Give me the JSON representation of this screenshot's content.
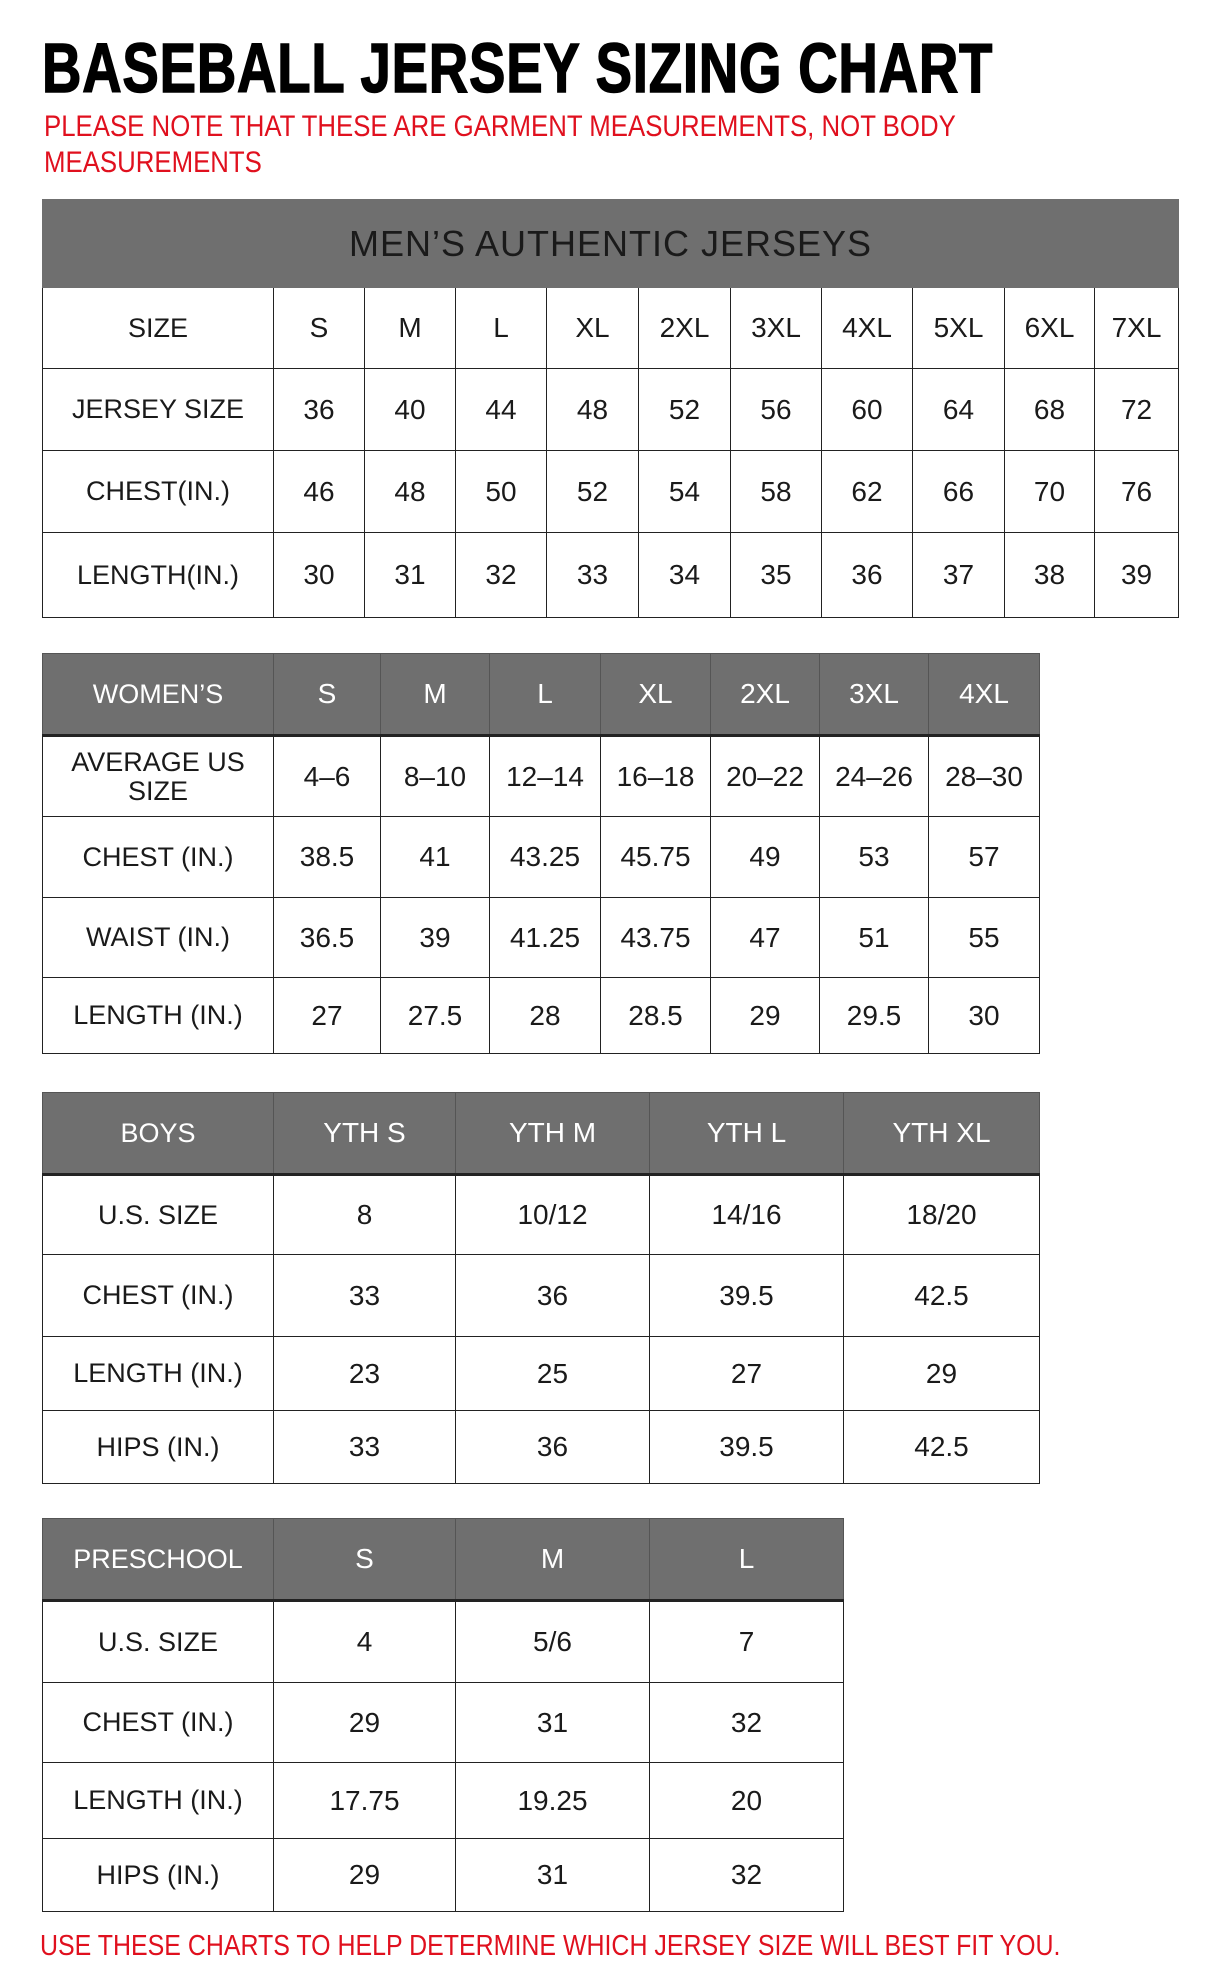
{
  "title": "BASEBALL JERSEY SIZING CHART",
  "note_line1": "PLEASE NOTE THAT THESE ARE GARMENT MEASUREMENTS, NOT BODY",
  "note_line2": "MEASUREMENTS",
  "footer": "USE THESE CHARTS TO HELP DETERMINE WHICH JERSEY SIZE WILL BEST FIT YOU.",
  "colors": {
    "header_bg": "#6f6f6f",
    "note_red": "#e0101e"
  },
  "tables": [
    {
      "id": "mens",
      "banner": "MEN’S AUTHENTIC JERSEYS",
      "header_shaded": false,
      "rows": [
        [
          "SIZE",
          "S",
          "M",
          "L",
          "XL",
          "2XL",
          "3XL",
          "4XL",
          "5XL",
          "6XL",
          "7XL"
        ],
        [
          "JERSEY SIZE",
          "36",
          "40",
          "44",
          "48",
          "52",
          "56",
          "60",
          "64",
          "68",
          "72"
        ],
        [
          "CHEST(IN.)",
          "46",
          "48",
          "50",
          "52",
          "54",
          "58",
          "62",
          "66",
          "70",
          "76"
        ],
        [
          "LENGTH(IN.)",
          "30",
          "31",
          "32",
          "33",
          "34",
          "35",
          "36",
          "37",
          "38",
          "39"
        ]
      ]
    },
    {
      "id": "womens",
      "header_shaded": true,
      "rows": [
        [
          "WOMEN’S",
          "S",
          "M",
          "L",
          "XL",
          "2XL",
          "3XL",
          "4XL"
        ],
        [
          "AVERAGE US SIZE",
          "4–6",
          "8–10",
          "12–14",
          "16–18",
          "20–22",
          "24–26",
          "28–30"
        ],
        [
          "CHEST (IN.)",
          "38.5",
          "41",
          "43.25",
          "45.75",
          "49",
          "53",
          "57"
        ],
        [
          "WAIST (IN.)",
          "36.5",
          "39",
          "41.25",
          "43.75",
          "47",
          "51",
          "55"
        ],
        [
          "LENGTH (IN.)",
          "27",
          "27.5",
          "28",
          "28.5",
          "29",
          "29.5",
          "30"
        ]
      ]
    },
    {
      "id": "boys",
      "header_shaded": true,
      "rows": [
        [
          "BOYS",
          "YTH S",
          "YTH M",
          "YTH L",
          "YTH XL"
        ],
        [
          "U.S. SIZE",
          "8",
          "10/12",
          "14/16",
          "18/20"
        ],
        [
          "CHEST (IN.)",
          "33",
          "36",
          "39.5",
          "42.5"
        ],
        [
          "LENGTH (IN.)",
          "23",
          "25",
          "27",
          "29"
        ],
        [
          "HIPS (IN.)",
          "33",
          "36",
          "39.5",
          "42.5"
        ]
      ]
    },
    {
      "id": "preschool",
      "header_shaded": true,
      "rows": [
        [
          "PRESCHOOL",
          "S",
          "M",
          "L"
        ],
        [
          "U.S. SIZE",
          "4",
          "5/6",
          "7"
        ],
        [
          "CHEST (IN.)",
          "29",
          "31",
          "32"
        ],
        [
          "LENGTH (IN.)",
          "17.75",
          "19.25",
          "20"
        ],
        [
          "HIPS (IN.)",
          "29",
          "31",
          "32"
        ]
      ]
    }
  ]
}
